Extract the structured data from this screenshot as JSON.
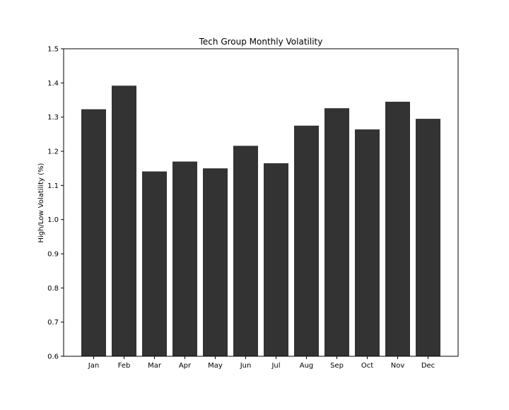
{
  "chart_data": {
    "type": "bar",
    "title": "Tech Group Monthly Volatility",
    "xlabel": "",
    "ylabel": "High/Low Volatility (%)",
    "categories": [
      "Jan",
      "Feb",
      "Mar",
      "Apr",
      "May",
      "Jun",
      "Jul",
      "Aug",
      "Sep",
      "Oct",
      "Nov",
      "Dec"
    ],
    "values": [
      1.323,
      1.392,
      1.141,
      1.17,
      1.15,
      1.216,
      1.165,
      1.275,
      1.326,
      1.264,
      1.345,
      1.295
    ],
    "ylim": [
      0.6,
      1.5
    ],
    "yticks": [
      "0.6",
      "0.7",
      "0.8",
      "0.9",
      "1.0",
      "1.1",
      "1.2",
      "1.3",
      "1.4",
      "1.5"
    ],
    "grid": false,
    "legend": "none",
    "bar_color": "#333333"
  }
}
